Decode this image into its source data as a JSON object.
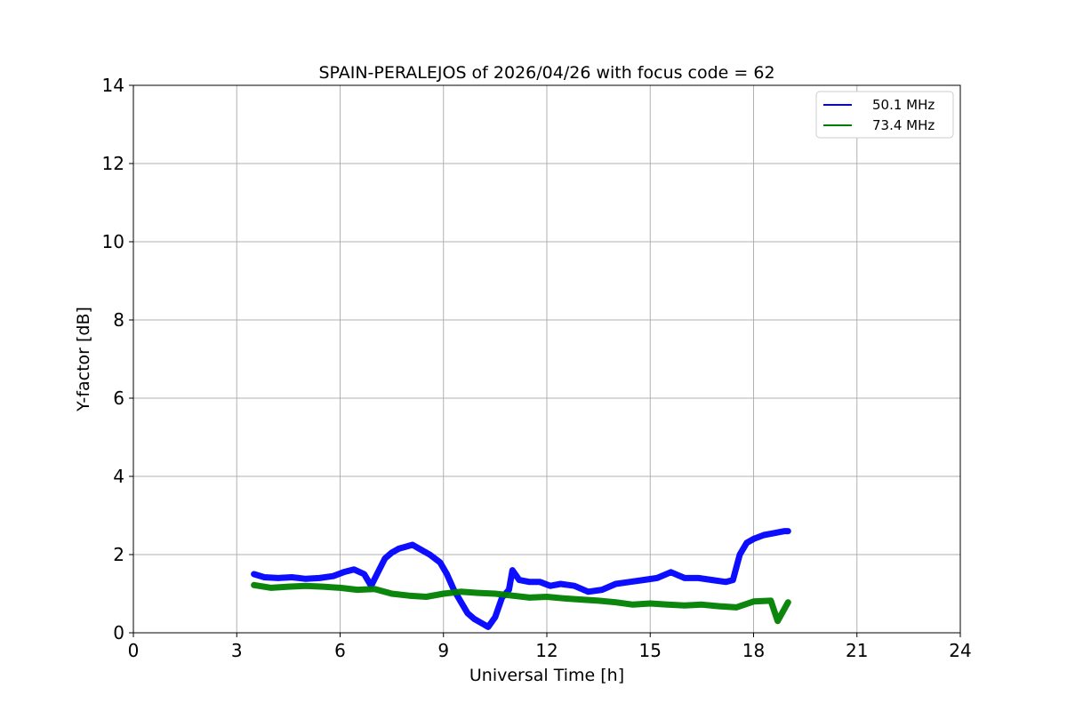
{
  "chart_data": {
    "type": "line",
    "title": "SPAIN-PERALEJOS of 2026/04/26 with focus code = 62",
    "xlabel": "Universal Time [h]",
    "ylabel": "Y-factor [dB]",
    "xlim": [
      0,
      24
    ],
    "ylim": [
      0,
      14
    ],
    "xticks": [
      0,
      3,
      6,
      9,
      12,
      15,
      18,
      21,
      24
    ],
    "yticks": [
      0,
      2,
      4,
      6,
      8,
      10,
      12,
      14
    ],
    "grid": true,
    "legend_position": "top-right",
    "series": [
      {
        "name": "50.1 MHz",
        "color": "#0000ff",
        "x": [
          3.5,
          3.8,
          4.2,
          4.6,
          5.0,
          5.4,
          5.8,
          6.1,
          6.4,
          6.7,
          6.9,
          7.1,
          7.3,
          7.5,
          7.7,
          7.9,
          8.1,
          8.3,
          8.6,
          8.9,
          9.1,
          9.3,
          9.5,
          9.7,
          9.9,
          10.1,
          10.3,
          10.5,
          10.7,
          10.9,
          11.0,
          11.2,
          11.5,
          11.8,
          12.1,
          12.4,
          12.8,
          13.2,
          13.6,
          14.0,
          14.4,
          14.8,
          15.2,
          15.6,
          16.0,
          16.4,
          16.8,
          17.2,
          17.4,
          17.6,
          17.8,
          18.0,
          18.3,
          18.6,
          18.9,
          19.0
        ],
        "y": [
          1.5,
          1.42,
          1.4,
          1.42,
          1.38,
          1.4,
          1.45,
          1.55,
          1.62,
          1.5,
          1.2,
          1.55,
          1.9,
          2.05,
          2.15,
          2.2,
          2.25,
          2.15,
          2.0,
          1.8,
          1.5,
          1.1,
          0.8,
          0.5,
          0.35,
          0.25,
          0.15,
          0.4,
          0.9,
          1.1,
          1.6,
          1.35,
          1.3,
          1.3,
          1.2,
          1.25,
          1.2,
          1.05,
          1.1,
          1.25,
          1.3,
          1.35,
          1.4,
          1.55,
          1.4,
          1.4,
          1.35,
          1.3,
          1.35,
          2.0,
          2.3,
          2.4,
          2.5,
          2.55,
          2.6,
          2.6
        ]
      },
      {
        "name": "73.4 MHz",
        "color": "#008000",
        "x": [
          3.5,
          4.0,
          4.5,
          5.0,
          5.5,
          6.0,
          6.5,
          7.0,
          7.5,
          8.0,
          8.5,
          9.0,
          9.5,
          10.0,
          10.5,
          11.0,
          11.5,
          12.0,
          12.5,
          13.0,
          13.5,
          14.0,
          14.5,
          15.0,
          15.5,
          16.0,
          16.5,
          17.0,
          17.5,
          18.0,
          18.5,
          18.7,
          19.0
        ],
        "y": [
          1.22,
          1.15,
          1.18,
          1.2,
          1.18,
          1.15,
          1.1,
          1.12,
          1.0,
          0.95,
          0.92,
          1.0,
          1.05,
          1.02,
          1.0,
          0.95,
          0.9,
          0.92,
          0.88,
          0.85,
          0.82,
          0.78,
          0.72,
          0.75,
          0.72,
          0.7,
          0.72,
          0.68,
          0.65,
          0.8,
          0.82,
          0.3,
          0.78
        ]
      }
    ]
  }
}
